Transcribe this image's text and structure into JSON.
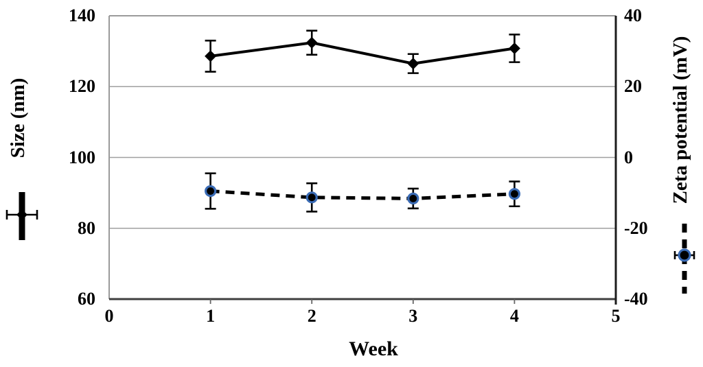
{
  "axes": {
    "x": {
      "label": "Week",
      "ticks": [
        0,
        1,
        2,
        3,
        4,
        5
      ],
      "range": [
        0,
        5
      ]
    },
    "y_left": {
      "label": "Size (nm)",
      "ticks": [
        140,
        120,
        100,
        80,
        60
      ],
      "range": [
        60,
        140
      ]
    },
    "y_right": {
      "label": "Zeta potential (mV)",
      "ticks": [
        40,
        20,
        0,
        -20,
        -40
      ],
      "range": [
        -40,
        40
      ]
    }
  },
  "chart_data": {
    "type": "line",
    "title": "",
    "xlabel": "Week",
    "ylabel_left": "Size (nm)",
    "ylabel_right": "Zeta potential (mV)",
    "x": [
      1,
      2,
      3,
      4
    ],
    "x_range": [
      0,
      5
    ],
    "y_left_range": [
      60,
      140
    ],
    "y_right_range": [
      -40,
      40
    ],
    "grid": "horizontal",
    "legend_position": "outside-left-and-right-glyphs-only",
    "series": [
      {
        "name": "Size (nm)",
        "axis": "left",
        "values": [
          128.6,
          132.4,
          126.5,
          130.8
        ],
        "errors": [
          4.4,
          3.4,
          2.7,
          3.9
        ],
        "line_style": "solid",
        "marker": "diamond",
        "color": "#000000"
      },
      {
        "name": "Zeta potential (mV)",
        "axis": "right",
        "values": [
          -9.5,
          -11.3,
          -11.6,
          -10.3
        ],
        "errors": [
          5.0,
          4.0,
          2.8,
          3.5
        ],
        "line_style": "dashed",
        "marker": "circle",
        "color": "#000000",
        "marker_ring_color": "#3a6bb5"
      }
    ]
  },
  "colors": {
    "background": "#ffffff",
    "text": "#000000",
    "grid": "#9f9f9f",
    "plot_border": "#9a9a9a",
    "bottom_axis": "#3f3f3f",
    "right_axis": "#1c1c1c",
    "marker_ring": "#3a6bb5"
  }
}
